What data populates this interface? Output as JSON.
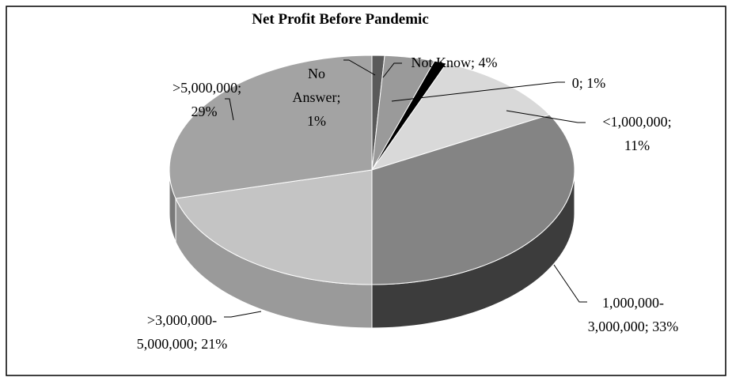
{
  "chart_data": {
    "type": "pie3d",
    "title": "Net Profit Before Pandemic",
    "values": [
      1,
      4,
      1,
      11,
      33,
      21,
      29
    ],
    "value_labels": [
      "No Answer;\n1%",
      "Not Know; 4%",
      "0; 1%",
      "<1,000,000;\n11%",
      "1,000,000-\n3,000,000; 33%",
      ">3,000,000-\n5,000,000; 21%",
      ">5,000,000;\n29%"
    ],
    "colors": [
      "#5a5a5a",
      "#9a9a9a",
      "#000000",
      "#d9d9d9",
      "#848484",
      "#c4c4c4",
      "#a3a3a3"
    ],
    "side_colors": [
      "#3a3a3a",
      "#6a6a6a",
      "#000000",
      "#a8a8a8",
      "#3c3c3c",
      "#9a9a9a",
      "#7a7a7a"
    ]
  }
}
